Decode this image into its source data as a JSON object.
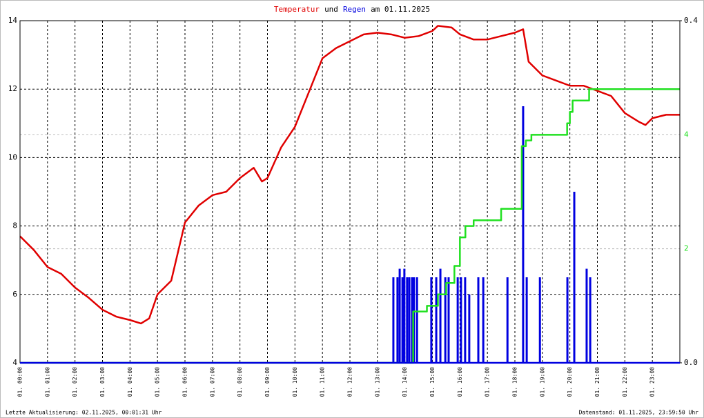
{
  "chart_data": {
    "type": "line",
    "title": [
      "Temperatur",
      "und",
      "Regen",
      "am 01.11.2025"
    ],
    "footer_left": "Letzte Aktualisierung: 02.11.2025, 00:01:31 Uhr",
    "footer_right": "Datenstand: 01.11.2025, 23:59:50 Uhr",
    "xlim": [
      0,
      24
    ],
    "xticks": [
      {
        "value": 0,
        "label": "01. 00:00"
      },
      {
        "value": 1,
        "label": "01. 01:00"
      },
      {
        "value": 2,
        "label": "01. 02:00"
      },
      {
        "value": 3,
        "label": "01. 03:00"
      },
      {
        "value": 4,
        "label": "01. 04:00"
      },
      {
        "value": 5,
        "label": "01. 05:00"
      },
      {
        "value": 6,
        "label": "01. 06:00"
      },
      {
        "value": 7,
        "label": "01. 07:00"
      },
      {
        "value": 8,
        "label": "01. 08:00"
      },
      {
        "value": 9,
        "label": "01. 09:00"
      },
      {
        "value": 10,
        "label": "01. 10:00"
      },
      {
        "value": 11,
        "label": "01. 11:00"
      },
      {
        "value": 12,
        "label": "01. 12:00"
      },
      {
        "value": 13,
        "label": "01. 13:00"
      },
      {
        "value": 14,
        "label": "01. 14:00"
      },
      {
        "value": 15,
        "label": "01. 15:00"
      },
      {
        "value": 16,
        "label": "01. 16:00"
      },
      {
        "value": 17,
        "label": "01. 17:00"
      },
      {
        "value": 18,
        "label": "01. 18:00"
      },
      {
        "value": 19,
        "label": "01. 19:00"
      },
      {
        "value": 20,
        "label": "01. 20:00"
      },
      {
        "value": 21,
        "label": "01. 21:00"
      },
      {
        "value": 22,
        "label": "01. 22:00"
      },
      {
        "value": 23,
        "label": "01. 23:00"
      }
    ],
    "ylim": [
      4,
      14
    ],
    "yticks": [
      4,
      6,
      8,
      10,
      12,
      14
    ],
    "y2lim": [
      0,
      0.4
    ],
    "y2ticks": [
      {
        "value": 0,
        "label": "0.0"
      },
      0.4
    ],
    "y3lim": [
      0,
      6
    ],
    "y3ticks": [
      2,
      4
    ],
    "grid": true,
    "series": [
      {
        "name": "Temperatur",
        "color": "#e00000",
        "x": [
          0,
          0.5,
          1,
          1.5,
          2,
          2.5,
          3,
          3.5,
          4,
          4.4,
          4.7,
          5,
          5.5,
          6,
          6.5,
          7,
          7.5,
          8,
          8.5,
          8.8,
          9,
          9.5,
          10,
          10.5,
          11,
          11.5,
          12,
          12.5,
          13,
          13.5,
          14,
          14.5,
          15,
          15.2,
          15.7,
          16,
          16.5,
          17,
          17.5,
          18,
          18.3,
          18.5,
          19,
          19.5,
          20,
          20.5,
          21,
          21.5,
          22,
          22.5,
          22.75,
          23,
          23.5,
          23.99
        ],
        "values": [
          7.7,
          7.3,
          6.8,
          6.6,
          6.2,
          5.9,
          5.55,
          5.35,
          5.25,
          5.15,
          5.3,
          6.0,
          6.4,
          8.1,
          8.6,
          8.9,
          9.0,
          9.4,
          9.7,
          9.3,
          9.4,
          10.3,
          10.9,
          11.9,
          12.9,
          13.2,
          13.4,
          13.6,
          13.65,
          13.6,
          13.5,
          13.55,
          13.7,
          13.85,
          13.8,
          13.6,
          13.45,
          13.45,
          13.55,
          13.65,
          13.75,
          12.8,
          12.4,
          12.25,
          12.1,
          12.1,
          11.95,
          11.8,
          11.3,
          11.05,
          10.95,
          11.15,
          11.25,
          11.25
        ]
      },
      {
        "name": "Regen",
        "color": "#0000e0",
        "type": "bar",
        "axis": "y2",
        "x": [
          13.58,
          13.73,
          13.81,
          13.91,
          13.98,
          14.08,
          14.16,
          14.26,
          14.33,
          14.44,
          14.96,
          15.14,
          15.29,
          15.47,
          15.59,
          15.92,
          16.04,
          16.19,
          16.34,
          16.67,
          16.85,
          17.73,
          18.3,
          18.43,
          18.91,
          19.91,
          20.16,
          20.61,
          20.74
        ],
        "values": [
          0.1,
          0.1,
          0.11,
          0.1,
          0.11,
          0.1,
          0.1,
          0.1,
          0.1,
          0.1,
          0.1,
          0.1,
          0.11,
          0.1,
          0.1,
          0.1,
          0.1,
          0.1,
          0.08,
          0.1,
          0.1,
          0.1,
          0.3,
          0.1,
          0.1,
          0.1,
          0.2,
          0.11,
          0.1
        ]
      },
      {
        "color": "#20e020",
        "axis": "y3",
        "x": [
          0,
          14.3,
          14.8,
          15.2,
          15.5,
          15.8,
          16.0,
          16.2,
          16.5,
          17.5,
          18.25,
          18.4,
          18.6,
          19.9,
          20.0,
          20.1,
          20.7,
          23.99
        ],
        "values": [
          0,
          0.9,
          1.0,
          1.2,
          1.4,
          1.7,
          2.2,
          2.4,
          2.5,
          2.7,
          3.8,
          3.9,
          4.0,
          4.2,
          4.4,
          4.6,
          4.8,
          4.8
        ]
      }
    ]
  }
}
